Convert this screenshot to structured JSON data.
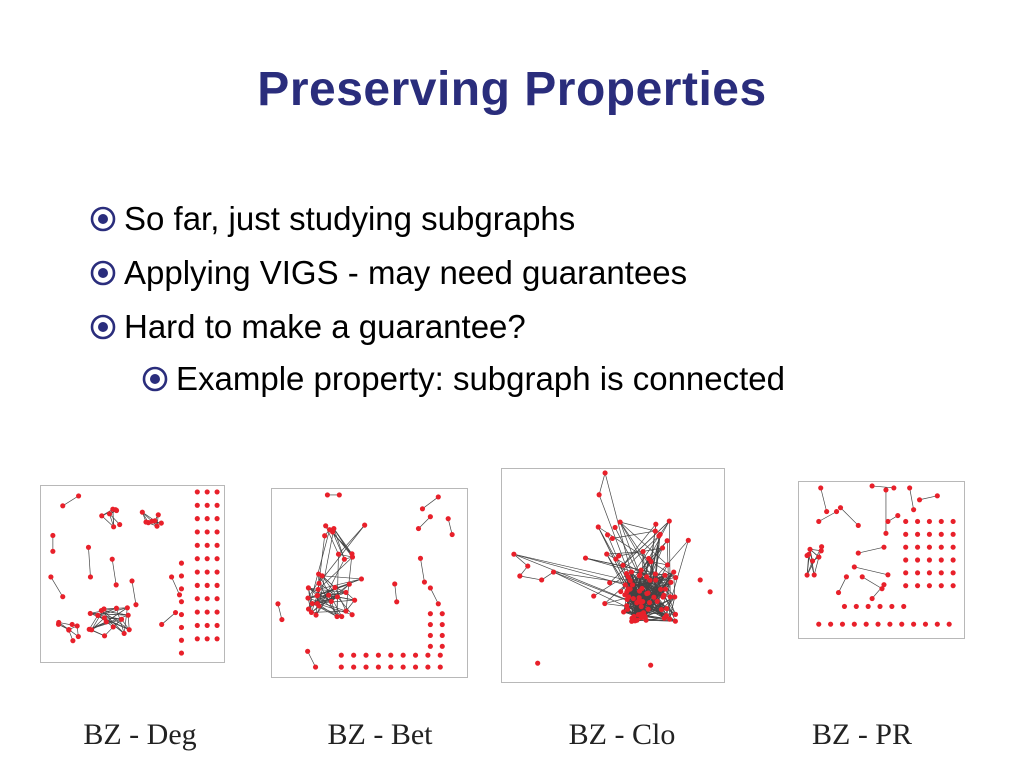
{
  "slide": {
    "title": "Preserving Properties",
    "bullet_icon": "circled-dot-icon",
    "accent_color": "#2a2d7c",
    "bullets": [
      {
        "text": "So far, just studying subgraphs",
        "level": 1
      },
      {
        "text": "Applying VIGS - may need guarantees",
        "level": 1
      },
      {
        "text": "Hard to make a guarantee?",
        "level": 1
      },
      {
        "text": "Example property: subgraph is connected",
        "level": 2
      }
    ]
  },
  "graphs": {
    "node_color": "#e8202a",
    "edge_color": "#444444",
    "panels": [
      {
        "id": "deg",
        "caption": "BZ - Deg",
        "layout": "clusters-and-isolated-grid"
      },
      {
        "id": "bet",
        "caption": "BZ - Bet",
        "layout": "central-cluster-and-isolated-grid"
      },
      {
        "id": "clo",
        "caption": "BZ - Clo",
        "layout": "dense-core"
      },
      {
        "id": "pr",
        "caption": "BZ - PR",
        "layout": "sparse-pairs-and-isolated-grid"
      }
    ]
  }
}
